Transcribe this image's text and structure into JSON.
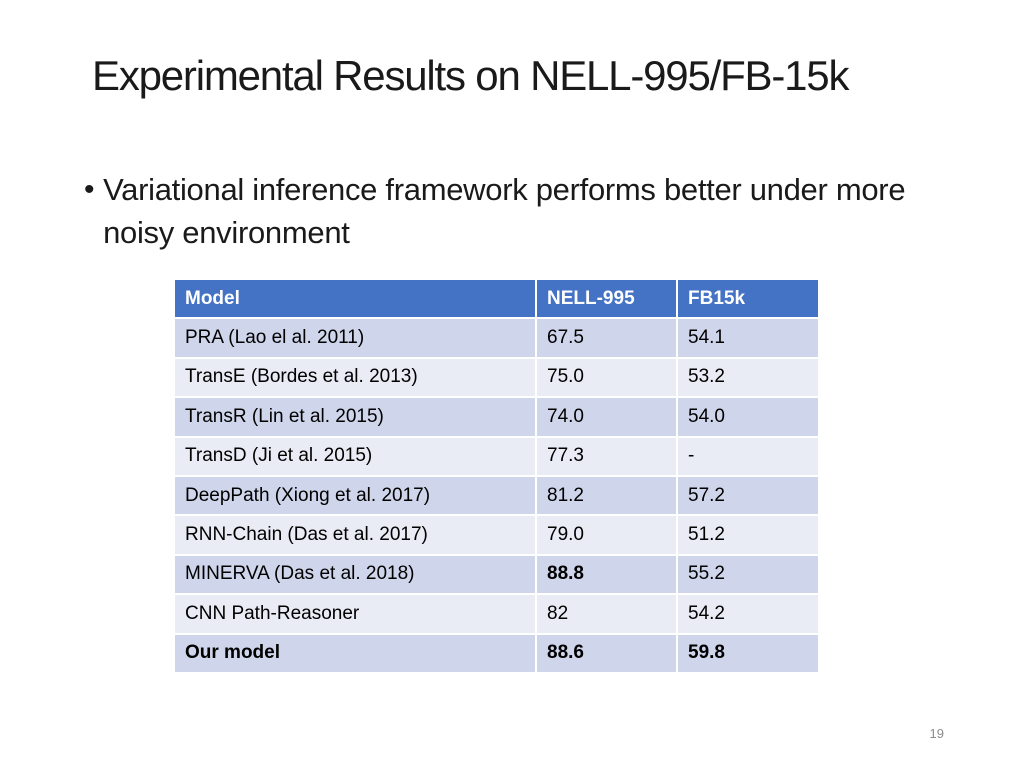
{
  "slide": {
    "title": "Experimental Results on NELL-995/FB-15k",
    "bullet": "Variational inference framework performs better under more noisy environment",
    "page_number": "19"
  },
  "table": {
    "headers": [
      "Model",
      "NELL-995",
      "FB15k"
    ],
    "header_color": "#4472c4",
    "row_colors": [
      "#cfd5ea",
      "#e9ebf5"
    ],
    "rows": [
      {
        "model": "PRA (Lao el al. 2011)",
        "nell": "67.5",
        "fb": "54.1"
      },
      {
        "model": "TransE (Bordes et al. 2013)",
        "nell": "75.0",
        "fb": "53.2"
      },
      {
        "model": "TransR (Lin et al. 2015)",
        "nell": "74.0",
        "fb": "54.0"
      },
      {
        "model": "TransD (Ji et al. 2015)",
        "nell": "77.3",
        "fb": "-"
      },
      {
        "model": "DeepPath (Xiong et al. 2017)",
        "nell": "81.2",
        "fb": "57.2"
      },
      {
        "model": "RNN-Chain (Das et al. 2017)",
        "nell": "79.0",
        "fb": "51.2"
      },
      {
        "model": "MINERVA (Das et al. 2018)",
        "nell": "88.8",
        "fb": "55.2"
      },
      {
        "model": "CNN Path-Reasoner",
        "nell": "82",
        "fb": "54.2"
      },
      {
        "model": "Our model",
        "nell": "88.6",
        "fb": "59.8"
      }
    ]
  }
}
